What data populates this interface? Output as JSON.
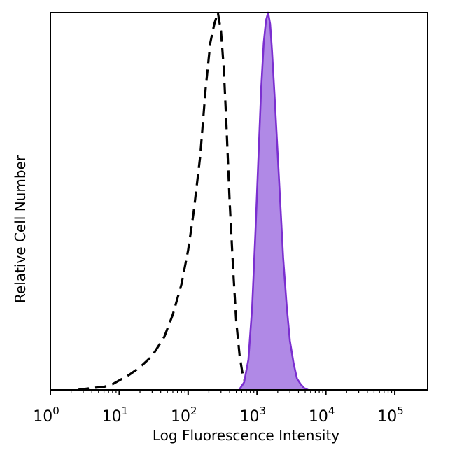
{
  "chart_data": {
    "type": "area",
    "title": "",
    "xlabel": "Log Fluorescence Intensity",
    "ylabel": "Relative Cell Number",
    "x_scale": "log",
    "xlim": [
      1,
      300000
    ],
    "ylim": [
      0,
      100
    ],
    "y_ticks_labeled": false,
    "grid": false,
    "legend": "none",
    "x_ticks": [
      {
        "value": 1,
        "base": "10",
        "exp": "0"
      },
      {
        "value": 10,
        "base": "10",
        "exp": "1"
      },
      {
        "value": 100,
        "base": "10",
        "exp": "2"
      },
      {
        "value": 1000,
        "base": "10",
        "exp": "3"
      },
      {
        "value": 10000,
        "base": "10",
        "exp": "4"
      },
      {
        "value": 100000,
        "base": "10",
        "exp": "5"
      }
    ],
    "series": [
      {
        "style": "dashed",
        "color": "#000000",
        "fill": "none",
        "x": [
          2.5,
          4,
          6,
          8,
          10,
          14,
          20,
          30,
          45,
          60,
          80,
          100,
          120,
          150,
          180,
          210,
          240,
          270,
          300,
          330,
          360,
          400,
          450,
          500,
          560,
          620,
          700,
          800
        ],
        "y": [
          0,
          0.5,
          0.8,
          1.5,
          2.5,
          4,
          6,
          9,
          14,
          20,
          28,
          37,
          47,
          62,
          80,
          92,
          97,
          100,
          95,
          85,
          70,
          50,
          32,
          18,
          9,
          4,
          1,
          0
        ]
      },
      {
        "style": "solid",
        "color": "#7b2fd0",
        "fill": "#b089e6",
        "x": [
          550,
          650,
          750,
          850,
          950,
          1050,
          1150,
          1250,
          1350,
          1450,
          1550,
          1650,
          1800,
          2000,
          2200,
          2400,
          2700,
          3000,
          3400,
          3800,
          4300,
          4800,
          5500
        ],
        "y": [
          0,
          2,
          8,
          22,
          42,
          62,
          80,
          92,
          98,
          100,
          97,
          90,
          78,
          62,
          48,
          35,
          22,
          13,
          7,
          3,
          1.5,
          0.5,
          0
        ]
      }
    ]
  }
}
